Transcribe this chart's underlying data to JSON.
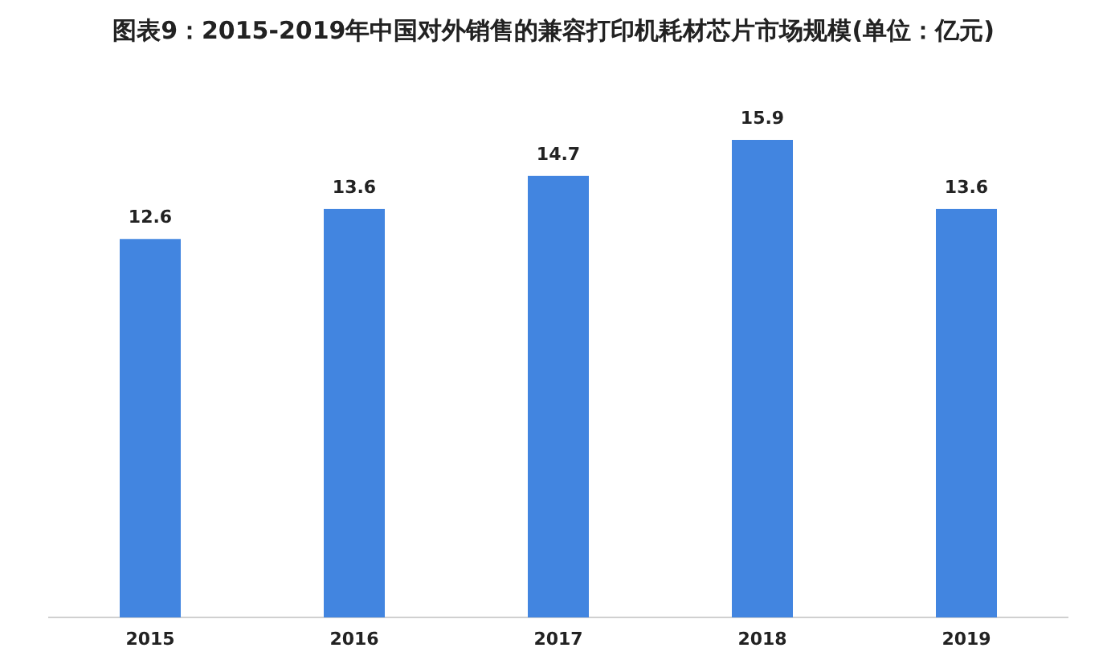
{
  "chart_data": {
    "type": "bar",
    "title": "图表9：2015-2019年中国对外销售的兼容打印机耗材芯片市场规模(单位：亿元)",
    "categories": [
      "2015",
      "2016",
      "2017",
      "2018",
      "2019"
    ],
    "values": [
      12.6,
      13.6,
      14.7,
      15.9,
      13.6
    ],
    "color": "#4285e0",
    "data_labels": true
  }
}
